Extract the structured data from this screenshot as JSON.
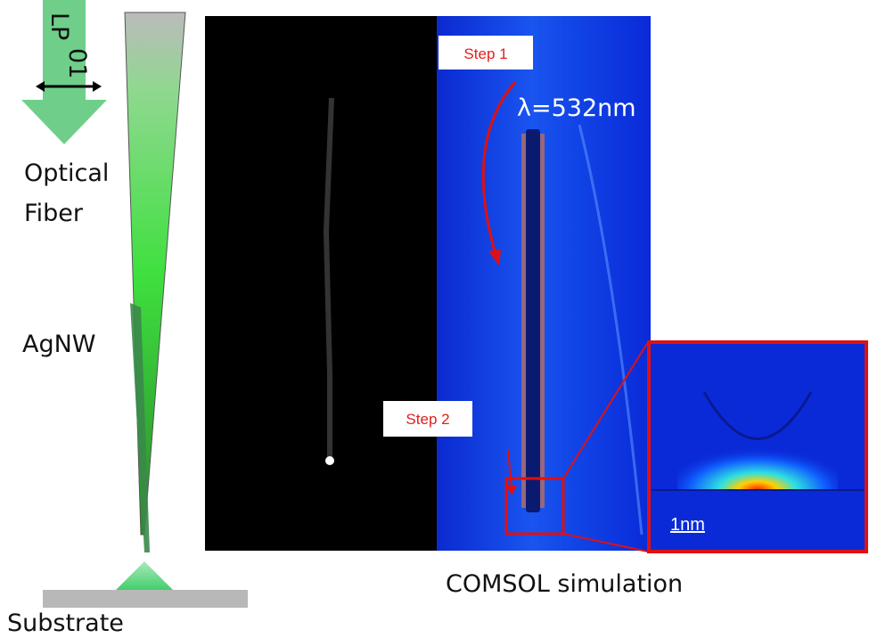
{
  "fiber_panel": {
    "mode_label": "LP",
    "mode_subscript": "01",
    "fiber_label": [
      "Optical",
      "Fiber"
    ],
    "wire_label": "AgNW",
    "substrate_label": "Substrate"
  },
  "simulation_panel": {
    "step1": "Step 1",
    "wavelength": "λ=532nm",
    "step2": "Step 2",
    "scale_bar": "1nm",
    "caption": "COMSOL simulation"
  }
}
